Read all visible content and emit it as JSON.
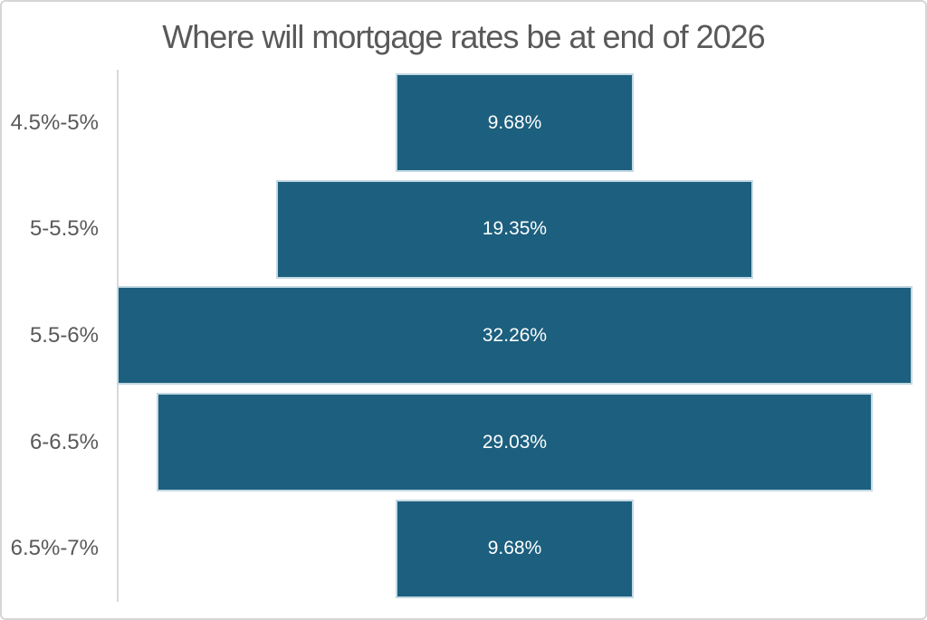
{
  "title": "Where will mortgage rates be at end of 2026",
  "colors": {
    "bar_fill": "#1c5f7e",
    "bar_border": "#c3d9e3",
    "title_text": "#595959",
    "category_text": "#595959",
    "value_text": "#ffffff",
    "axis_line": "#d9d9d9",
    "frame_border": "#d6d6d6",
    "background": "#ffffff"
  },
  "chart_data": {
    "type": "bar",
    "orientation": "horizontal-centered-funnel",
    "title": "Where will mortgage rates be at end of 2026",
    "categories": [
      "4.5%-5%",
      "5-5.5%",
      "5.5-6%",
      "6-6.5%",
      "6.5%-7%"
    ],
    "values": [
      9.68,
      19.35,
      32.26,
      29.03,
      9.68
    ],
    "value_labels": [
      "9.68%",
      "19.35%",
      "32.26%",
      "29.03%",
      "9.68%"
    ],
    "xlabel": "",
    "ylabel": "",
    "xlim": [
      0,
      32.26
    ],
    "grid": false,
    "legend": false,
    "data_labels": "inside-center"
  }
}
